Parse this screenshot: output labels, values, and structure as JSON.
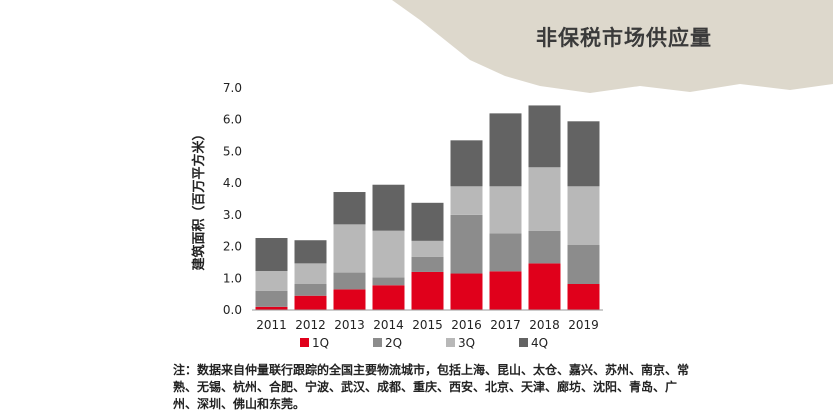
{
  "page": {
    "title": "非保税市场供应量",
    "footnote": "注：数据来自仲量联行跟踪的全国主要物流城市，包括上海、昆山、太仓、嘉兴、苏州、南京、常熟、无锡、杭州、合肥、宁波、武汉、成都、重庆、西安、北京、天津、廊坊、沈阳、青岛、广州、深圳、佛山和东莞。"
  },
  "colors": {
    "banner": "#ddd8cc",
    "q1": "#e0001b",
    "q2": "#8c8c8c",
    "q3": "#b8b8b8",
    "q4": "#636363"
  },
  "chart_data": {
    "type": "bar",
    "stacked": true,
    "categories": [
      "2011",
      "2012",
      "2013",
      "2014",
      "2015",
      "2016",
      "2017",
      "2018",
      "2019"
    ],
    "series": [
      {
        "name": "1Q",
        "values": [
          0.1,
          0.45,
          0.65,
          0.78,
          1.2,
          1.15,
          1.22,
          1.47,
          0.82
        ]
      },
      {
        "name": "2Q",
        "values": [
          0.5,
          0.37,
          0.53,
          0.25,
          0.48,
          1.85,
          1.2,
          1.03,
          1.23
        ]
      },
      {
        "name": "3Q",
        "values": [
          0.63,
          0.65,
          1.52,
          1.47,
          0.5,
          0.9,
          1.48,
          2.0,
          1.85
        ]
      },
      {
        "name": "4Q",
        "values": [
          1.04,
          0.73,
          1.02,
          1.45,
          1.2,
          1.45,
          2.3,
          1.95,
          2.05
        ]
      }
    ],
    "ylabel": "建筑面积（百万平方米）",
    "xlabel": "",
    "ylim": [
      0,
      7
    ],
    "yticks": [
      "0.0",
      "1.0",
      "2.0",
      "3.0",
      "4.0",
      "5.0",
      "6.0",
      "7.0"
    ],
    "grid": false,
    "legend_position": "bottom"
  }
}
